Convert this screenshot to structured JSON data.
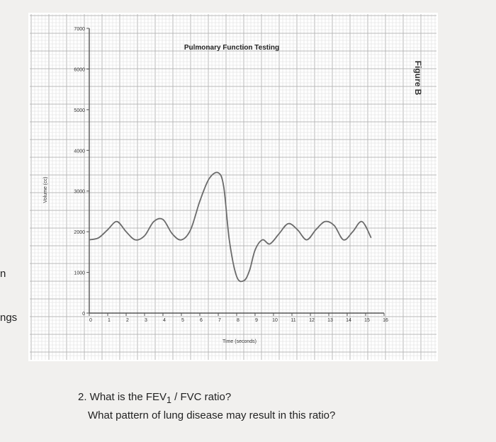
{
  "side_fragments": [
    "n",
    "ngs"
  ],
  "figure_label": "Figure B",
  "question": {
    "line1_prefix": "2. What is the FEV",
    "line1_sub": "1",
    "line1_suffix": " / FVC ratio?",
    "line2": "What pattern of lung disease may result in this ratio?"
  },
  "chart_data": {
    "type": "line",
    "title": "Pulmonary Function Testing",
    "xlabel": "Time (seconds)",
    "ylabel": "Volume (cc)",
    "xlim": [
      0,
      16
    ],
    "ylim": [
      0,
      7000
    ],
    "x_ticks": [
      0,
      1,
      2,
      3,
      4,
      5,
      6,
      7,
      8,
      9,
      10,
      11,
      12,
      13,
      14,
      15,
      16
    ],
    "y_ticks": [
      0,
      1000,
      2000,
      3000,
      4000,
      5000,
      6000,
      7000
    ],
    "grid": true,
    "series": [
      {
        "color": "#6b6b6b",
        "x": [
          0,
          0.5,
          1.0,
          1.5,
          2.0,
          2.5,
          3.0,
          3.5,
          4.0,
          4.5,
          5.0,
          5.5,
          6.0,
          6.5,
          7.0,
          7.3,
          7.6,
          8.0,
          8.4,
          8.7,
          9.0,
          9.4,
          9.8,
          10.3,
          10.8,
          11.3,
          11.8,
          12.3,
          12.8,
          13.3,
          13.8,
          14.3,
          14.8,
          15.3
        ],
        "y": [
          1800,
          1850,
          2050,
          2250,
          2000,
          1800,
          1900,
          2250,
          2300,
          1950,
          1800,
          2050,
          2750,
          3300,
          3450,
          3100,
          1800,
          900,
          800,
          1050,
          1550,
          1800,
          1700,
          1950,
          2200,
          2050,
          1800,
          2050,
          2250,
          2150,
          1800,
          2000,
          2250,
          1850
        ]
      }
    ]
  }
}
